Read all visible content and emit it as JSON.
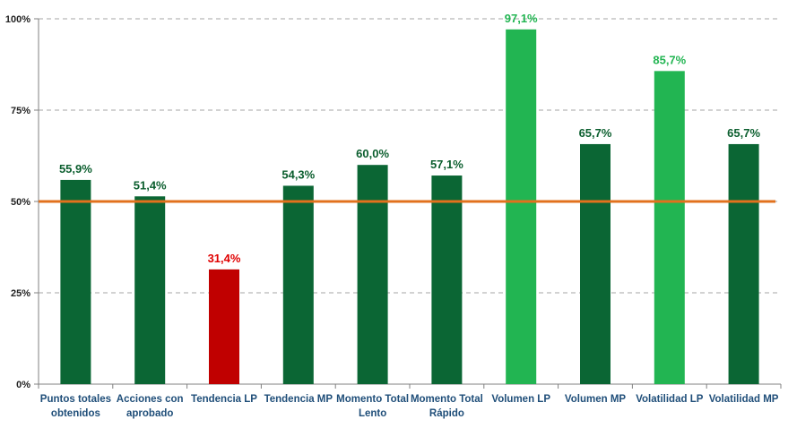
{
  "chart_data": {
    "type": "bar",
    "categories": [
      "Puntos totales obtenidos",
      "Acciones con aprobado",
      "Tendencia LP",
      "Tendencia MP",
      "Momento Total Lento",
      "Momento Total Rápido",
      "Volumen LP",
      "Volumen MP",
      "Volatilidad LP",
      "Volatilidad MP"
    ],
    "category_lines": [
      [
        "Puntos totales",
        "obtenidos"
      ],
      [
        "Acciones con",
        "aprobado"
      ],
      [
        "Tendencia LP"
      ],
      [
        "Tendencia MP"
      ],
      [
        "Momento Total",
        "Lento"
      ],
      [
        "Momento Total",
        "Rápido"
      ],
      [
        "Volumen LP"
      ],
      [
        "Volumen MP"
      ],
      [
        "Volatilidad LP"
      ],
      [
        "Volatilidad MP"
      ]
    ],
    "values": [
      55.9,
      51.4,
      31.4,
      54.3,
      60.0,
      57.1,
      97.1,
      65.7,
      85.7,
      65.7
    ],
    "value_labels": [
      "55,9%",
      "51,4%",
      "31,4%",
      "54,3%",
      "60,0%",
      "57,1%",
      "97,1%",
      "65,7%",
      "85,7%",
      "65,7%"
    ],
    "bar_colors": [
      "#0b6634",
      "#0b6634",
      "#c00000",
      "#0b6634",
      "#0b6634",
      "#0b6634",
      "#22b552",
      "#0b6634",
      "#22b552",
      "#0b6634"
    ],
    "label_colors": [
      "#0b5e2e",
      "#0b5e2e",
      "#e00000",
      "#0b5e2e",
      "#0b5e2e",
      "#0b5e2e",
      "#22b552",
      "#0b5e2e",
      "#22b552",
      "#0b5e2e"
    ],
    "yticks": [
      0,
      25,
      50,
      75,
      100
    ],
    "ytick_labels": [
      "0%",
      "25%",
      "50%",
      "75%",
      "100%"
    ],
    "ylim": [
      0,
      100
    ],
    "reference_line": {
      "value": 50,
      "color": "#e2711d"
    },
    "grid": true,
    "title": "",
    "xlabel": "",
    "ylabel": ""
  }
}
